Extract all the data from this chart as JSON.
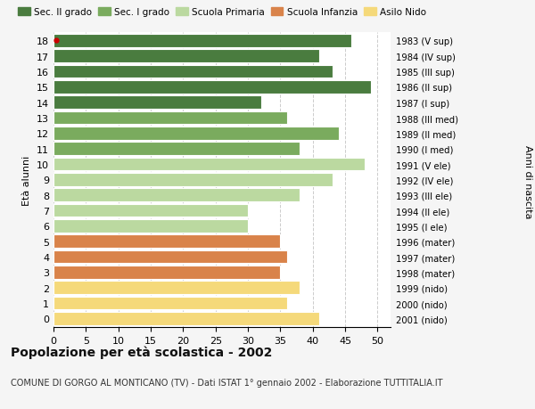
{
  "ages": [
    18,
    17,
    16,
    15,
    14,
    13,
    12,
    11,
    10,
    9,
    8,
    7,
    6,
    5,
    4,
    3,
    2,
    1,
    0
  ],
  "values": [
    46,
    41,
    43,
    49,
    32,
    36,
    44,
    38,
    48,
    43,
    38,
    30,
    30,
    35,
    36,
    35,
    38,
    36,
    41
  ],
  "right_labels": [
    "1983 (V sup)",
    "1984 (IV sup)",
    "1985 (III sup)",
    "1986 (II sup)",
    "1987 (I sup)",
    "1988 (III med)",
    "1989 (II med)",
    "1990 (I med)",
    "1991 (V ele)",
    "1992 (IV ele)",
    "1993 (III ele)",
    "1994 (II ele)",
    "1995 (I ele)",
    "1996 (mater)",
    "1997 (mater)",
    "1998 (mater)",
    "1999 (nido)",
    "2000 (nido)",
    "2001 (nido)"
  ],
  "colors": [
    "#4a7c3f",
    "#4a7c3f",
    "#4a7c3f",
    "#4a7c3f",
    "#4a7c3f",
    "#7aab5e",
    "#7aab5e",
    "#7aab5e",
    "#bbd9a0",
    "#bbd9a0",
    "#bbd9a0",
    "#bbd9a0",
    "#bbd9a0",
    "#d9834a",
    "#d9834a",
    "#d9834a",
    "#f5d97a",
    "#f5d97a",
    "#f5d97a"
  ],
  "legend_labels": [
    "Sec. II grado",
    "Sec. I grado",
    "Scuola Primaria",
    "Scuola Infanzia",
    "Asilo Nido"
  ],
  "legend_colors": [
    "#4a7c3f",
    "#7aab5e",
    "#bbd9a0",
    "#d9834a",
    "#f5d97a"
  ],
  "ylabel_left": "Età alunni",
  "ylabel_right": "Anni di nascita",
  "title": "Popolazione per età scolastica - 2002",
  "subtitle": "COMUNE DI GORGO AL MONTICANO (TV) - Dati ISTAT 1° gennaio 2002 - Elaborazione TUTTITALIA.IT",
  "xlim": [
    0,
    52
  ],
  "xticks": [
    0,
    5,
    10,
    15,
    20,
    25,
    30,
    35,
    40,
    45,
    50
  ],
  "bg_color": "#f5f5f5",
  "bar_bg_color": "#ffffff",
  "grid_color": "#cccccc",
  "dot_color": "#cc0000",
  "dot_age": 18
}
